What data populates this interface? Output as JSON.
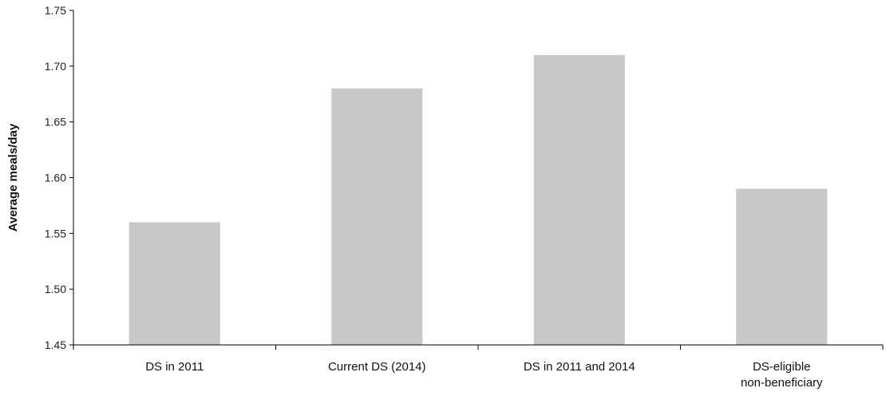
{
  "chart_data": {
    "type": "bar",
    "title": "",
    "xlabel": "",
    "ylabel": "Average meals/day",
    "categories": [
      [
        "DS in 2011"
      ],
      [
        "Current DS (2014)"
      ],
      [
        "DS in 2011 and 2014"
      ],
      [
        "DS-eligible",
        "non-beneficiary"
      ]
    ],
    "values": [
      1.56,
      1.68,
      1.71,
      1.59
    ],
    "ylim": [
      1.45,
      1.75
    ],
    "yticks": [
      "1.45",
      "1.50",
      "1.55",
      "1.60",
      "1.65",
      "1.70",
      "1.75"
    ],
    "grid": false,
    "legend": "none",
    "bar_color": "#c8c8c8",
    "axis_color": "#000000"
  }
}
